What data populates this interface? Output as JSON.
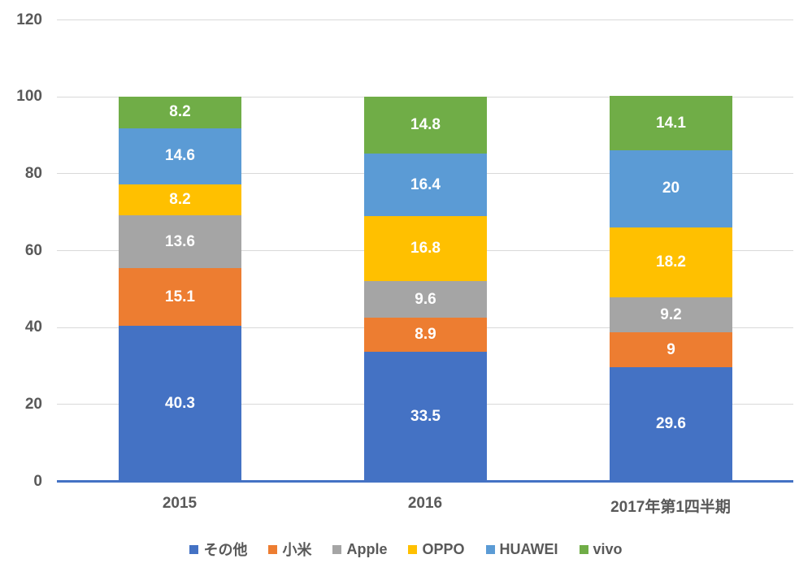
{
  "chart_data": {
    "type": "bar",
    "stacked": true,
    "title": "",
    "xlabel": "",
    "ylabel": "",
    "categories": [
      "2015",
      "2016",
      "2017年第1四半期"
    ],
    "series": [
      {
        "name": "その他",
        "color": "#4472C4",
        "values": [
          40.3,
          33.5,
          29.6
        ]
      },
      {
        "name": "小米",
        "color": "#ED7D31",
        "values": [
          15.1,
          8.9,
          9
        ]
      },
      {
        "name": "Apple",
        "color": "#A5A5A5",
        "values": [
          13.6,
          9.6,
          9.2
        ]
      },
      {
        "name": "OPPO",
        "color": "#FFC000",
        "values": [
          8.2,
          16.8,
          18.2
        ]
      },
      {
        "name": "HUAWEI",
        "color": "#5B9BD5",
        "values": [
          14.6,
          16.4,
          20
        ]
      },
      {
        "name": "vivo",
        "color": "#70AD47",
        "values": [
          8.2,
          14.8,
          14.1
        ]
      }
    ],
    "y_ticks": [
      0,
      20,
      40,
      60,
      80,
      100,
      120
    ],
    "ylim": [
      0,
      120
    ],
    "grid": true,
    "legend_position": "bottom",
    "colors": {
      "gridline": "#D9D9D9",
      "axis_line": "#4472C4",
      "tick_label": "#595959",
      "data_label": "#FFFFFF",
      "background": "#FFFFFF"
    }
  }
}
